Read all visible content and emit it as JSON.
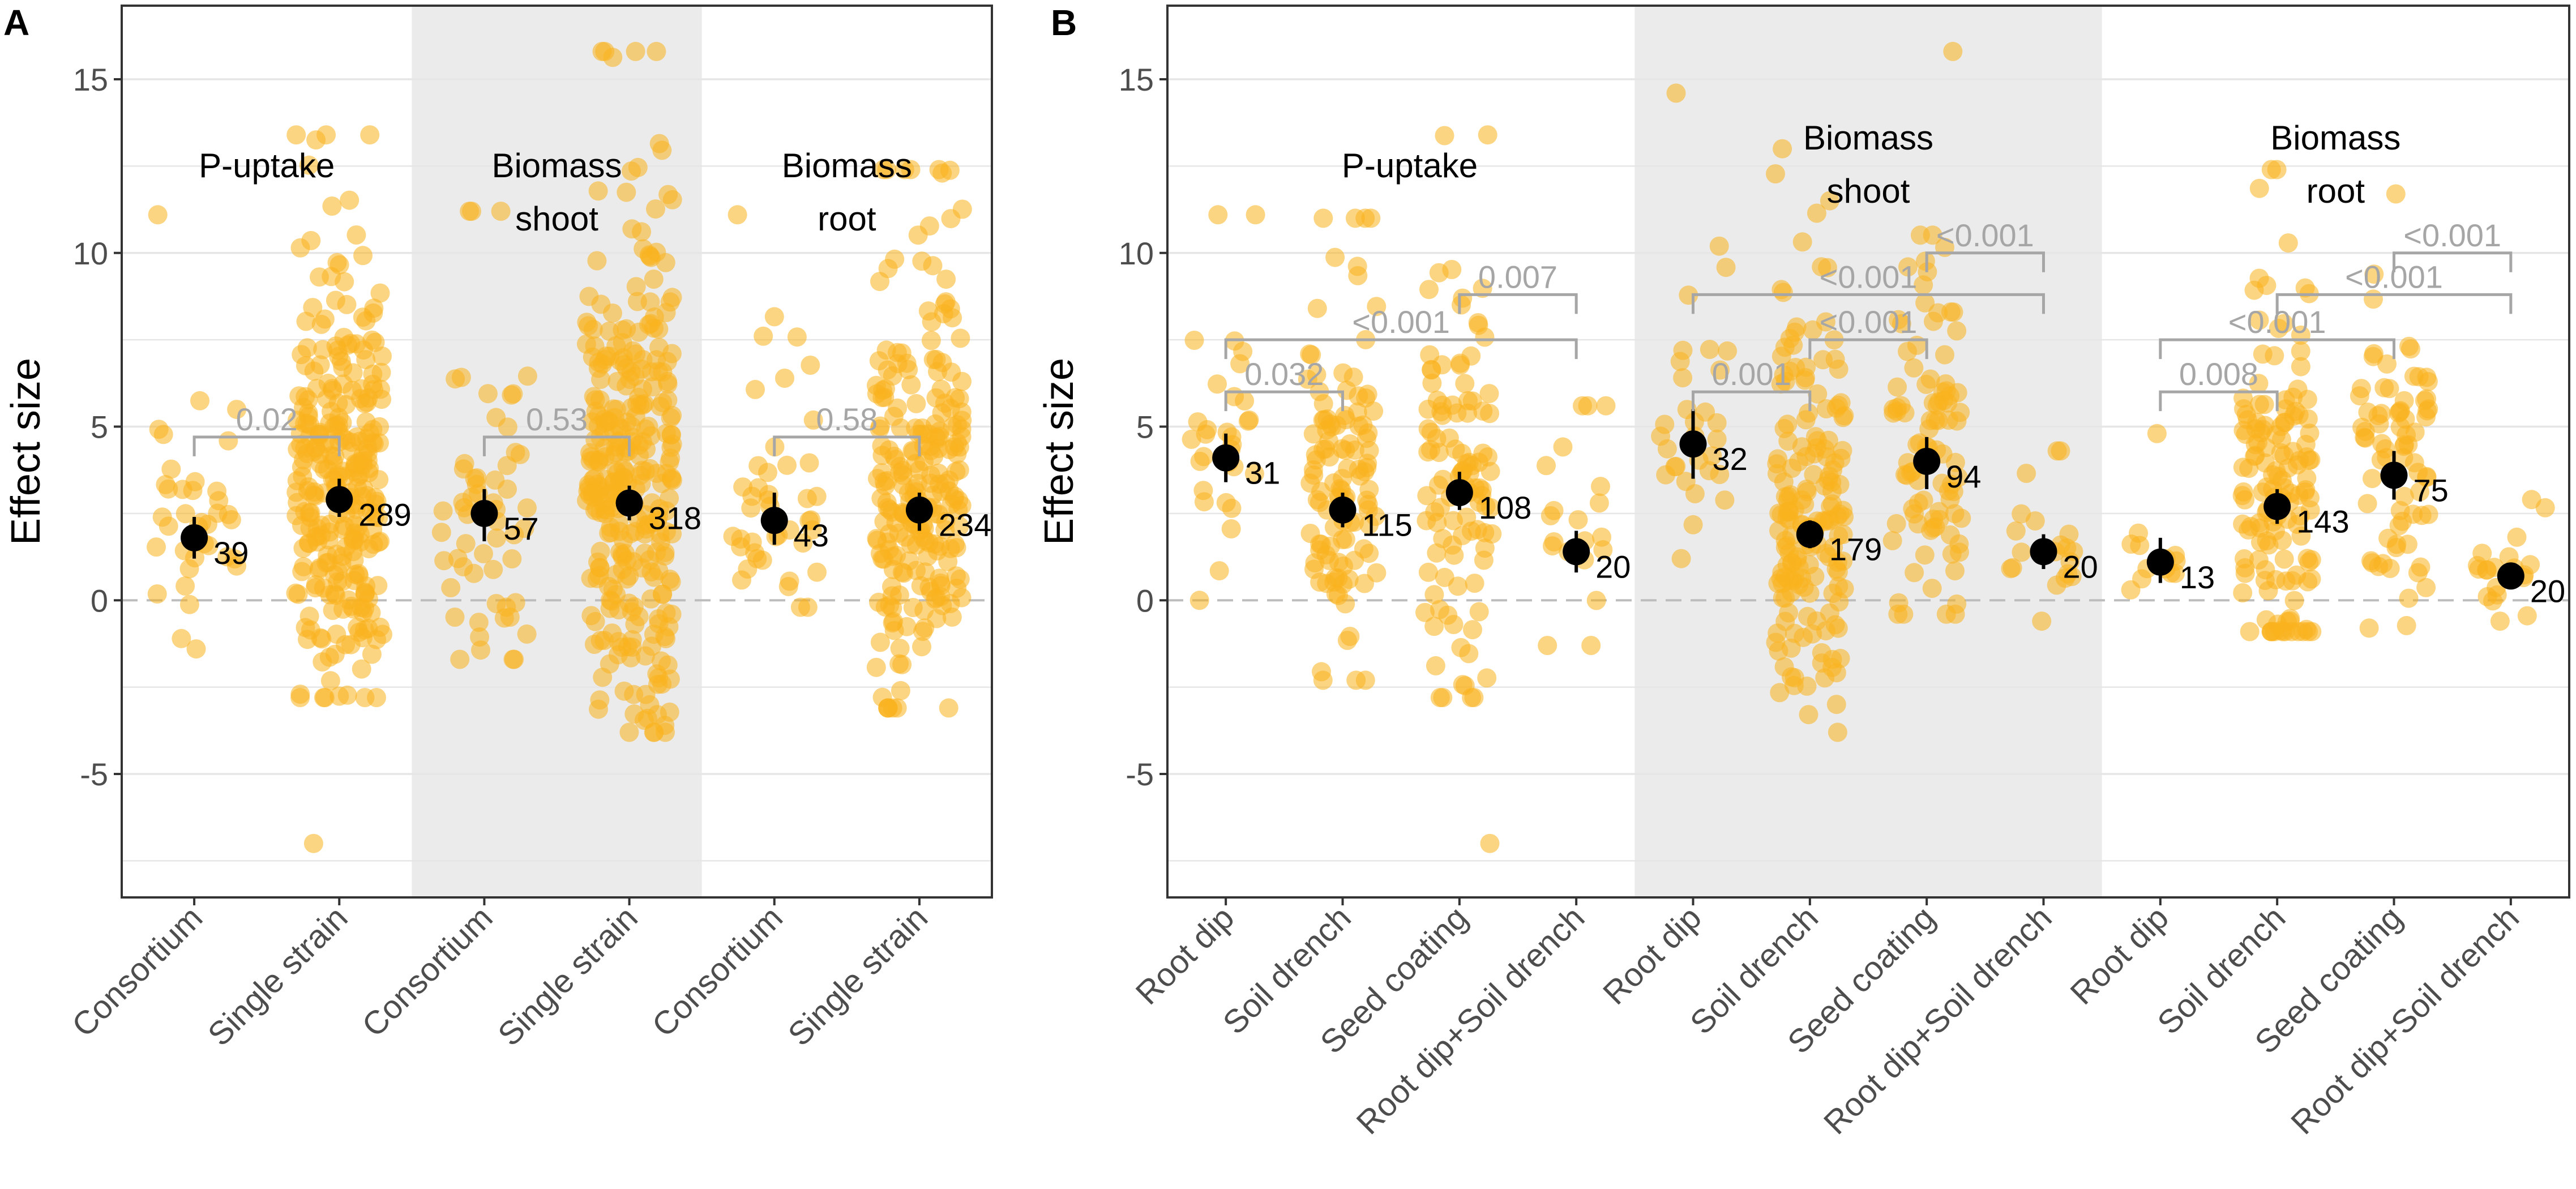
{
  "figure": {
    "panel_b_uptake_label": "P-uptake"
  },
  "colors": {
    "jitter": "#F9B21D",
    "mean": "#000000",
    "shade": "#EBEBEB",
    "bracket": "#A6A6A6",
    "grid": "#E6E6E6",
    "zero": "#BDBDBD"
  },
  "chart_data": [
    {
      "panel_label": "A",
      "type": "scatter",
      "ylabel": "Effect size",
      "ylim": [
        -8.5,
        16.8
      ],
      "yticks": [
        -5,
        0,
        5,
        10,
        15
      ],
      "ytick_labels": [
        "-5",
        "0",
        "5",
        "10",
        "15"
      ],
      "reference_line": 0,
      "categories": [
        "Consortium",
        "Single strain",
        "Consortium",
        "Single strain",
        "Consortium",
        "Single strain"
      ],
      "groups": [
        {
          "title": [
            "P-uptake"
          ],
          "shaded": false,
          "cat_index": [
            0,
            1
          ]
        },
        {
          "title": [
            "Biomass",
            "shoot"
          ],
          "shaded": true,
          "cat_index": [
            2,
            3
          ]
        },
        {
          "title": [
            "Biomass",
            "root"
          ],
          "shaded": false,
          "cat_index": [
            4,
            5
          ]
        }
      ],
      "series": [
        {
          "category": "Consortium",
          "group": "P-uptake",
          "mean": 1.8,
          "ci": [
            1.2,
            2.4
          ],
          "n": 39,
          "n_label": "39",
          "spread": [
            -1.4,
            5.2,
            11.1
          ]
        },
        {
          "category": "Single strain",
          "group": "P-uptake",
          "mean": 2.9,
          "ci": [
            2.4,
            3.5
          ],
          "n": 289,
          "n_label": "289",
          "spread": [
            -2.8,
            11.2,
            13.4,
            -7.0
          ]
        },
        {
          "category": "Consortium",
          "group": "Biomass shoot",
          "mean": 2.5,
          "ci": [
            1.7,
            3.2
          ],
          "n": 57,
          "n_label": "57",
          "spread": [
            -1.7,
            8.5,
            11.2
          ]
        },
        {
          "category": "Single strain",
          "group": "Biomass shoot",
          "mean": 2.8,
          "ci": [
            2.3,
            3.3
          ],
          "n": 318,
          "n_label": "318",
          "spread": [
            -3.8,
            12.5,
            15.8
          ]
        },
        {
          "category": "Consortium",
          "group": "Biomass root",
          "mean": 2.3,
          "ci": [
            1.6,
            3.1
          ],
          "n": 43,
          "n_label": "43",
          "spread": [
            -0.2,
            7.8,
            11.1
          ]
        },
        {
          "category": "Single strain",
          "group": "Biomass root",
          "mean": 2.6,
          "ci": [
            2.0,
            3.1
          ],
          "n": 234,
          "n_label": "234",
          "spread": [
            -3.1,
            10.3,
            12.4
          ]
        }
      ],
      "comparisons": [
        {
          "from": 0,
          "to": 1,
          "y": 4.7,
          "label": "0.02"
        },
        {
          "from": 2,
          "to": 3,
          "y": 4.7,
          "label": "0.53"
        },
        {
          "from": 4,
          "to": 5,
          "y": 4.7,
          "label": "0.58"
        }
      ]
    },
    {
      "panel_label": "B",
      "type": "scatter",
      "ylabel": "Effect size",
      "ylim": [
        -8.5,
        16.8
      ],
      "yticks": [
        -5,
        0,
        5,
        10,
        15
      ],
      "ytick_labels": [
        "-5",
        "0",
        "5",
        "10",
        "15"
      ],
      "reference_line": 0,
      "categories": [
        "Root dip",
        "Soil drench",
        "Seed coating",
        "Root dip+Soil drench",
        "Root dip",
        "Soil drench",
        "Seed coating",
        "Root dip+Soil drench",
        "Root dip",
        "Soil drench",
        "Seed coating",
        "Root dip+Soil drench"
      ],
      "groups": [
        {
          "title": [
            "P-uptake"
          ],
          "shaded": false,
          "cat_index": [
            0,
            1,
            2,
            3
          ]
        },
        {
          "title": [
            "Biomass",
            "shoot"
          ],
          "shaded": true,
          "cat_index": [
            4,
            5,
            6,
            7
          ]
        },
        {
          "title": [
            "Biomass",
            "root"
          ],
          "shaded": false,
          "cat_index": [
            8,
            9,
            10,
            11
          ]
        }
      ],
      "series": [
        {
          "category": "Root dip",
          "group": "P-uptake",
          "mean": 4.1,
          "ci": [
            3.4,
            4.8
          ],
          "n": 31,
          "n_label": "31",
          "spread": [
            0.0,
            8.5,
            11.1
          ]
        },
        {
          "category": "Soil drench",
          "group": "P-uptake",
          "mean": 2.6,
          "ci": [
            2.1,
            3.1
          ],
          "n": 115,
          "n_label": "115",
          "spread": [
            -2.3,
            9.5,
            11.0
          ]
        },
        {
          "category": "Seed coating",
          "group": "P-uptake",
          "mean": 3.1,
          "ci": [
            2.6,
            3.7
          ],
          "n": 108,
          "n_label": "108",
          "spread": [
            -2.8,
            10.0,
            13.4,
            -7.0
          ]
        },
        {
          "category": "Root dip+Soil drench",
          "group": "P-uptake",
          "mean": 1.4,
          "ci": [
            0.8,
            2.0
          ],
          "n": 20,
          "n_label": "20",
          "spread": [
            -1.3,
            4.3,
            5.6
          ]
        },
        {
          "category": "Root dip",
          "group": "Biomass shoot",
          "mean": 4.5,
          "ci": [
            3.5,
            5.5
          ],
          "n": 32,
          "n_label": "32",
          "spread": [
            1.2,
            9.8,
            14.6
          ]
        },
        {
          "category": "Soil drench",
          "group": "Biomass shoot",
          "mean": 1.9,
          "ci": [
            1.5,
            2.3
          ],
          "n": 179,
          "n_label": "179",
          "spread": [
            -3.8,
            8.0,
            13.0
          ]
        },
        {
          "category": "Seed coating",
          "group": "Biomass shoot",
          "mean": 4.0,
          "ci": [
            3.2,
            4.7
          ],
          "n": 94,
          "n_label": "94",
          "spread": [
            -0.4,
            10.5,
            15.8
          ]
        },
        {
          "category": "Root dip+Soil drench",
          "group": "Biomass shoot",
          "mean": 1.4,
          "ci": [
            0.9,
            1.9
          ],
          "n": 20,
          "n_label": "20",
          "spread": [
            -0.6,
            3.1,
            4.3
          ]
        },
        {
          "category": "Root dip",
          "group": "Biomass root",
          "mean": 1.1,
          "ci": [
            0.5,
            1.8
          ],
          "n": 13,
          "n_label": "13",
          "spread": [
            0.3,
            2.8,
            4.8
          ]
        },
        {
          "category": "Soil drench",
          "group": "Biomass root",
          "mean": 2.7,
          "ci": [
            2.2,
            3.2
          ],
          "n": 143,
          "n_label": "143",
          "spread": [
            -0.9,
            10.0,
            12.4
          ]
        },
        {
          "category": "Seed coating",
          "group": "Biomass root",
          "mean": 3.6,
          "ci": [
            2.9,
            4.3
          ],
          "n": 75,
          "n_label": "75",
          "spread": [
            -0.8,
            9.0,
            11.7
          ]
        },
        {
          "category": "Root dip+Soil drench",
          "group": "Biomass root",
          "mean": 0.7,
          "ci": [
            0.4,
            1.0
          ],
          "n": 20,
          "n_label": "20",
          "spread": [
            -0.6,
            2.2,
            2.9
          ]
        }
      ],
      "comparisons": [
        {
          "from": 0,
          "to": 1,
          "y": 6.0,
          "label": "0.032"
        },
        {
          "from": 0,
          "to": 3,
          "y": 7.5,
          "label": "<0.001"
        },
        {
          "from": 2,
          "to": 3,
          "y": 8.8,
          "label": "0.007"
        },
        {
          "from": 4,
          "to": 5,
          "y": 6.0,
          "label": "0.001"
        },
        {
          "from": 5,
          "to": 6,
          "y": 7.5,
          "label": "<0.001"
        },
        {
          "from": 4,
          "to": 7,
          "y": 8.8,
          "label": "<0.001"
        },
        {
          "from": 6,
          "to": 7,
          "y": 10.0,
          "label": "<0.001"
        },
        {
          "from": 8,
          "to": 9,
          "y": 6.0,
          "label": "0.008"
        },
        {
          "from": 8,
          "to": 10,
          "y": 7.5,
          "label": "<0.001"
        },
        {
          "from": 9,
          "to": 11,
          "y": 8.8,
          "label": "<0.001"
        },
        {
          "from": 10,
          "to": 11,
          "y": 10.0,
          "label": "<0.001"
        }
      ]
    }
  ]
}
